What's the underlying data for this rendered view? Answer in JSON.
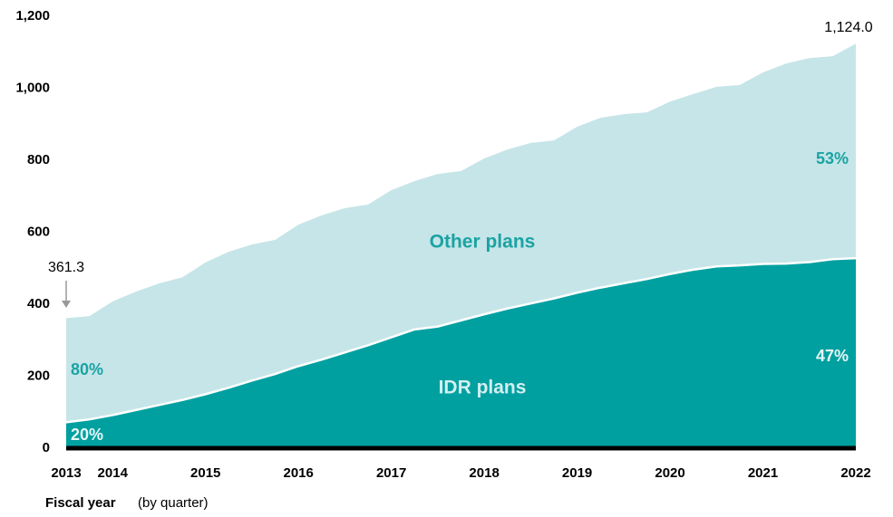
{
  "chart_data": {
    "type": "stacked-area",
    "categories": [
      "2013",
      null,
      "2014",
      null,
      null,
      null,
      "2015",
      null,
      null,
      null,
      "2016",
      null,
      null,
      null,
      "2017",
      null,
      null,
      null,
      "2018",
      null,
      null,
      null,
      "2019",
      null,
      null,
      null,
      "2020",
      null,
      null,
      null,
      "2021",
      null,
      null,
      null,
      "2022"
    ],
    "series": [
      {
        "name": "IDR plans",
        "color": "#00a0a0",
        "values": [
          72,
          80,
          92,
          106,
          120,
          134,
          150,
          168,
          188,
          206,
          228,
          246,
          266,
          286,
          308,
          330,
          338,
          355,
          372,
          388,
          402,
          416,
          432,
          446,
          458,
          470,
          484,
          496,
          505,
          508,
          512,
          513,
          517,
          525,
          528
        ]
      },
      {
        "name": "Other plans",
        "color": "#c6e5e8",
        "values": [
          289.3,
          287,
          316,
          329,
          338,
          341,
          366,
          378,
          378,
          373,
          393,
          401,
          401,
          391,
          409,
          412,
          424,
          415,
          433,
          442,
          446,
          439,
          461,
          472,
          470,
          463,
          479,
          488,
          499,
          501,
          532,
          556,
          567,
          564,
          596
        ]
      }
    ],
    "ylim": [
      0,
      1200
    ],
    "yticks": [
      0,
      200,
      400,
      600,
      800,
      {
        "value": 1000,
        "label": "1,000"
      },
      {
        "value": 1200,
        "label": "1,200"
      }
    ],
    "xlabel": "Fiscal year",
    "xlabel_note": "(by quarter)",
    "annotations": [
      "361.3",
      "1,124.0",
      "80%",
      "20%",
      "53%",
      "47%"
    ]
  }
}
